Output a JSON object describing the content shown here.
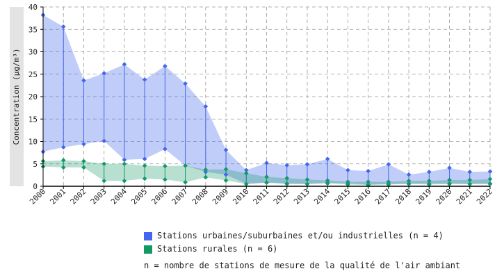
{
  "chart_data": {
    "type": "line",
    "ylabel": "Concentration (µg/m³)",
    "xlabel": "",
    "ylim": [
      0,
      40
    ],
    "yticks": [
      "0",
      "5",
      "10",
      "15",
      "20",
      "25",
      "30",
      "35",
      "40"
    ],
    "categories": [
      "2000",
      "2001",
      "2002",
      "2003",
      "2004",
      "2005",
      "2006",
      "2007",
      "2008",
      "2009",
      "2010",
      "2011",
      "2012",
      "2013",
      "2014",
      "2015",
      "2016",
      "2017",
      "2018",
      "2019",
      "2020",
      "2021",
      "2022"
    ],
    "grid": true,
    "series": [
      {
        "name": "Stations urbaines/suburbaines et/ou industrielles (n = 4)",
        "color": "#4466ee",
        "max": [
          38.2,
          35.6,
          23.6,
          25.2,
          27.2,
          23.8,
          26.8,
          22.9,
          17.8,
          8.1,
          3.6,
          5.2,
          4.7,
          4.9,
          6.1,
          3.6,
          3.4,
          4.9,
          2.6,
          3.2,
          4.1,
          3.2,
          3.3
        ],
        "min": [
          7.7,
          8.7,
          9.4,
          10.1,
          5.9,
          6.1,
          8.3,
          4.6,
          3.2,
          2.6,
          0.5,
          0.8,
          0.6,
          0.5,
          0.8,
          0.6,
          0.4,
          0.5,
          0.6,
          0.6,
          0.6,
          0.5,
          0.6
        ]
      },
      {
        "name": "Stations rurales (n = 6)",
        "color": "#119966",
        "max": [
          5.6,
          5.8,
          5.6,
          5.0,
          5.0,
          4.6,
          4.5,
          4.6,
          3.7,
          3.8,
          2.9,
          2.1,
          1.8,
          1.5,
          1.3,
          1.0,
          1.0,
          1.0,
          1.2,
          1.2,
          1.4,
          1.4,
          1.6
        ],
        "min": [
          4.4,
          4.2,
          4.2,
          1.2,
          1.2,
          1.7,
          1.5,
          0.9,
          2.0,
          1.3,
          0.5,
          0.8,
          0.5,
          0.5,
          0.6,
          0.4,
          0.3,
          0.4,
          0.5,
          0.4,
          0.5,
          0.5,
          0.5
        ]
      }
    ],
    "legend_position": "bottom",
    "footnote": "n = nombre de stations de mesure de la qualité de l'air ambiant"
  }
}
